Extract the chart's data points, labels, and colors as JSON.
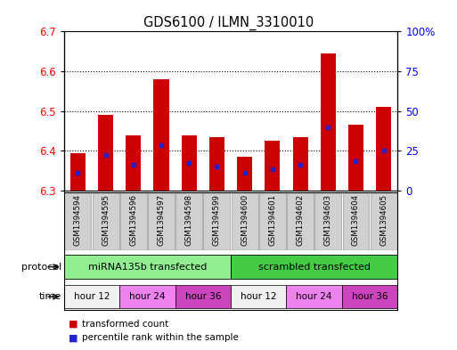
{
  "title": "GDS6100 / ILMN_3310010",
  "samples": [
    "GSM1394594",
    "GSM1394595",
    "GSM1394596",
    "GSM1394597",
    "GSM1394598",
    "GSM1394599",
    "GSM1394600",
    "GSM1394601",
    "GSM1394602",
    "GSM1394603",
    "GSM1394604",
    "GSM1394605"
  ],
  "bar_values": [
    6.395,
    6.49,
    6.44,
    6.58,
    6.44,
    6.435,
    6.385,
    6.425,
    6.435,
    6.645,
    6.465,
    6.51
  ],
  "bar_base": 6.3,
  "blue_marker_values": [
    6.345,
    6.39,
    6.365,
    6.415,
    6.37,
    6.36,
    6.345,
    6.355,
    6.365,
    6.46,
    6.375,
    6.4
  ],
  "ylim_left": [
    6.3,
    6.7
  ],
  "ylim_right": [
    0,
    100
  ],
  "yticks_left": [
    6.3,
    6.4,
    6.5,
    6.6,
    6.7
  ],
  "yticks_right": [
    0,
    25,
    50,
    75,
    100
  ],
  "ytick_labels_right": [
    "0",
    "25",
    "50",
    "75",
    "100%"
  ],
  "bar_color": "#cc0000",
  "blue_color": "#2222cc",
  "protocol_labels": [
    "miRNA135b transfected",
    "scrambled transfected"
  ],
  "protocol_color1": "#90ee90",
  "protocol_color2": "#44cc44",
  "time_labels": [
    "hour 12",
    "hour 24",
    "hour 36",
    "hour 12",
    "hour 24",
    "hour 36"
  ],
  "time_colors": [
    "#f0f0f0",
    "#ee82ee",
    "#cc44bb",
    "#f0f0f0",
    "#ee82ee",
    "#cc44bb"
  ],
  "legend_red": "transformed count",
  "legend_blue": "percentile rank within the sample",
  "sample_box_color": "#d0d0d0",
  "plot_bg": "#ffffff"
}
